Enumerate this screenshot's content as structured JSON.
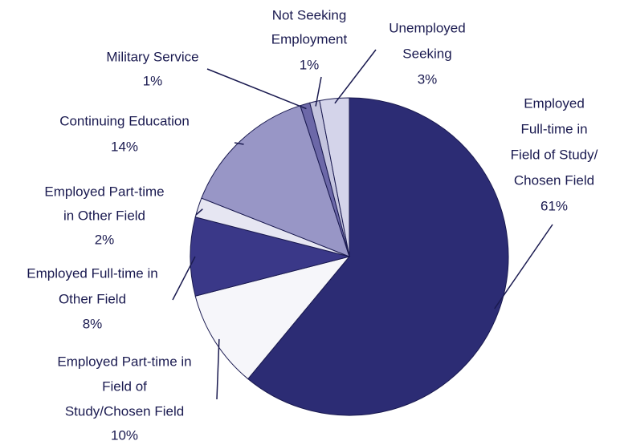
{
  "chart_data": {
    "type": "pie",
    "categories": [
      [
        "Employed",
        "Full-time in",
        "Field of Study/",
        "Chosen Field"
      ],
      [
        "Employed Part-time in",
        "Field of",
        "Study/Chosen Field"
      ],
      [
        "Employed Full-time in",
        "Other Field"
      ],
      [
        "Employed Part-time",
        "in Other Field"
      ],
      [
        "Continuing Education"
      ],
      [
        "Military Service"
      ],
      [
        "Not Seeking",
        "Employment"
      ],
      [
        "Unemployed",
        "Seeking"
      ]
    ],
    "values": [
      61,
      10,
      8,
      2,
      14,
      1,
      1,
      3
    ],
    "value_labels": [
      "61%",
      "10%",
      "8%",
      "2%",
      "14%",
      "1%",
      "1%",
      "3%"
    ],
    "colors": [
      "#2c2c74",
      "#f6f6fa",
      "#3a3888",
      "#e6e6f2",
      "#9896c6",
      "#6c68a8",
      "#c4c4de",
      "#d4d4ea"
    ]
  }
}
